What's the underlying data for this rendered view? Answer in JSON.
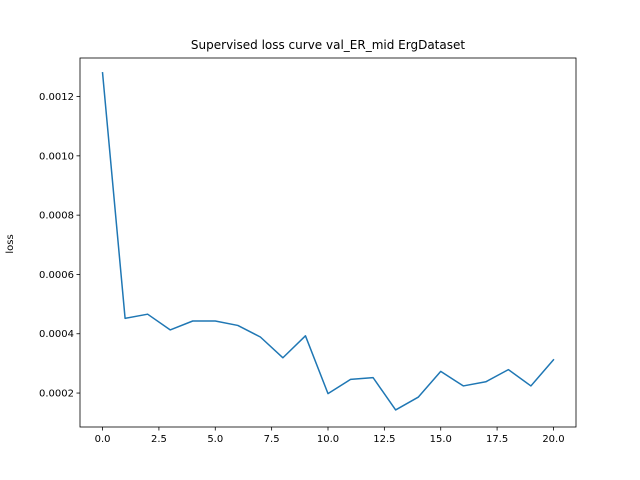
{
  "chart_data": {
    "type": "line",
    "title": "Supervised loss curve val_ER_mid ErgDataset",
    "xlabel": "",
    "ylabel": "loss",
    "xlim": [
      -1.0,
      21.0
    ],
    "ylim": [
      8.55e-05,
      0.00133
    ],
    "x_ticks": [
      0.0,
      2.5,
      5.0,
      7.5,
      10.0,
      12.5,
      15.0,
      17.5,
      20.0
    ],
    "x_tick_labels": [
      "0.0",
      "2.5",
      "5.0",
      "7.5",
      "10.0",
      "12.5",
      "15.0",
      "17.5",
      "20.0"
    ],
    "y_ticks": [
      0.0002,
      0.0004,
      0.0006,
      0.0008,
      0.001,
      0.0012
    ],
    "y_tick_labels": [
      "0.0002",
      "0.0004",
      "0.0006",
      "0.0008",
      "0.0010",
      "0.0012"
    ],
    "grid": false,
    "legend": "none",
    "series": [
      {
        "color": "#1f77b4",
        "x": [
          0,
          1,
          2,
          3,
          4,
          5,
          6,
          7,
          8,
          9,
          10,
          11,
          12,
          13,
          14,
          15,
          16,
          17,
          18,
          19,
          20
        ],
        "values": [
          0.00128,
          0.000452,
          0.000466,
          0.000413,
          0.000443,
          0.000443,
          0.000428,
          0.000389,
          0.000319,
          0.000393,
          0.000198,
          0.000246,
          0.000252,
          0.000143,
          0.000186,
          0.000273,
          0.000224,
          0.000238,
          0.000279,
          0.000224,
          0.000312
        ]
      }
    ]
  }
}
